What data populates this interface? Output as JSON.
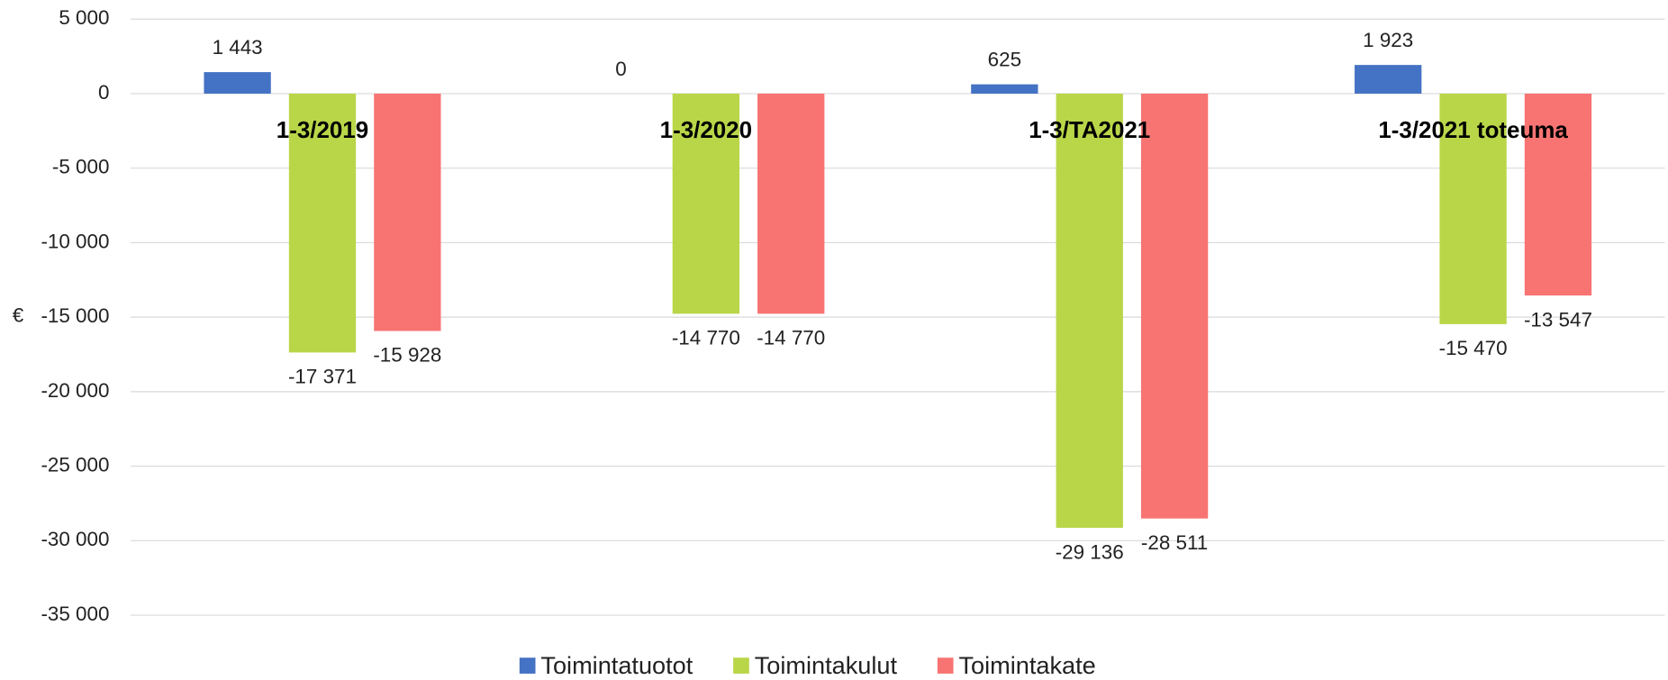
{
  "chart_data": {
    "type": "bar",
    "y_label": "€",
    "categories": [
      "1-3/2019",
      "1-3/2020",
      "1-3/TA2021",
      "1-3/2021 toteuma"
    ],
    "series": [
      {
        "name": "Toimintatuotot",
        "color": "#4472c4",
        "values": [
          1443,
          0,
          625,
          1923
        ],
        "value_labels": [
          "1 443",
          "0",
          "625",
          "1 923"
        ]
      },
      {
        "name": "Toimintakulut",
        "color": "#b9d648",
        "values": [
          -17371,
          -14770,
          -29136,
          -15470
        ],
        "value_labels": [
          "-17 371",
          "-14 770",
          "-29 136",
          "-15 470"
        ]
      },
      {
        "name": "Toimintakate",
        "color": "#f77472",
        "values": [
          -15928,
          -14770,
          -28511,
          -13547
        ],
        "value_labels": [
          "-15 928",
          "-14 770",
          "-28 511",
          "-13 547"
        ]
      }
    ],
    "ylim": [
      -35000,
      5000
    ],
    "yticks": [
      {
        "value": 5000,
        "label": "5 000"
      },
      0,
      {
        "value": -5000,
        "label": "-5 000"
      },
      {
        "value": -10000,
        "label": "-10 000"
      },
      {
        "value": -15000,
        "label": "-15 000"
      },
      {
        "value": -20000,
        "label": "-20 000"
      },
      {
        "value": -25000,
        "label": "-25 000"
      },
      {
        "value": -30000,
        "label": "-30 000"
      },
      {
        "value": -35000,
        "label": "-35 000"
      }
    ],
    "grid": true,
    "legend": "bottom"
  }
}
